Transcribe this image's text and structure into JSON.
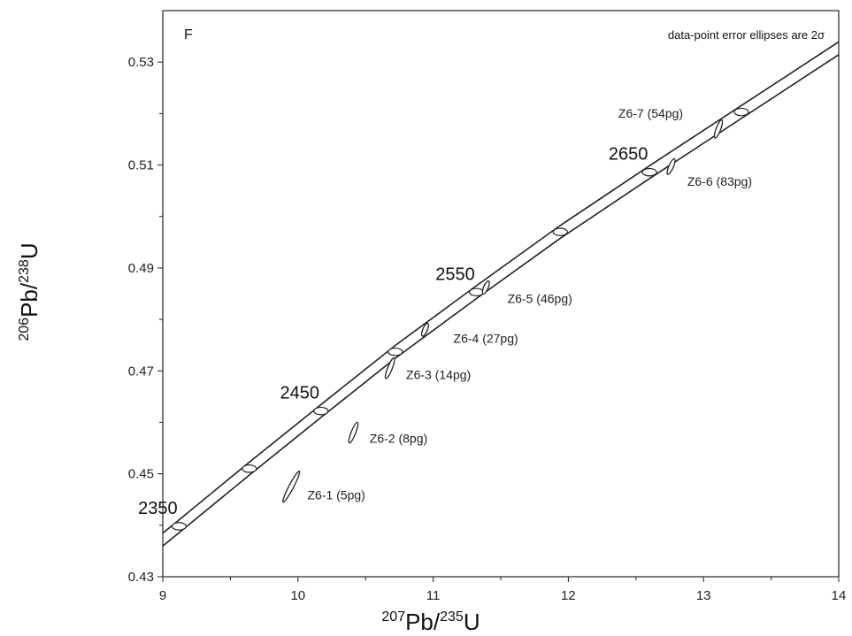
{
  "chart_data": {
    "type": "scatter",
    "panel_label": "F",
    "note": "data-point error ellipses are 2σ",
    "xlabel": {
      "sup1": "207",
      "base1": "Pb/",
      "sup2": "235",
      "base2": "U"
    },
    "ylabel": {
      "sup1": "206",
      "base1": "Pb/",
      "sup2": "238",
      "base2": "U"
    },
    "xlim": [
      9,
      14
    ],
    "ylim": [
      0.43,
      0.54
    ],
    "x_ticks": [
      "9",
      "10",
      "11",
      "12",
      "13",
      "14"
    ],
    "y_ticks": [
      "0.43",
      "0.45",
      "0.47",
      "0.49",
      "0.51",
      "0.53"
    ],
    "grid": false,
    "concordia": {
      "band_offset_y": 0.0025,
      "age_markers": [
        {
          "x": 9.12,
          "y": 0.4398
        },
        {
          "x": 9.64,
          "y": 0.451
        },
        {
          "x": 10.17,
          "y": 0.4622
        },
        {
          "x": 10.72,
          "y": 0.4737
        },
        {
          "x": 11.32,
          "y": 0.4853
        },
        {
          "x": 11.94,
          "y": 0.497
        },
        {
          "x": 12.6,
          "y": 0.5086
        },
        {
          "x": 13.28,
          "y": 0.5203
        }
      ],
      "age_labels": [
        {
          "text": "2350",
          "x": 9.12,
          "y": 0.4398
        },
        {
          "text": "2450",
          "x": 10.17,
          "y": 0.4622
        },
        {
          "text": "2550",
          "x": 11.32,
          "y": 0.4853
        },
        {
          "text": "2650",
          "x": 12.6,
          "y": 0.5086
        }
      ]
    },
    "points": [
      {
        "label": "Z6-1 (5pg)",
        "x": 9.95,
        "y": 0.4475,
        "dx": 0.12,
        "dy": 0.006
      },
      {
        "label": "Z6-2 (8pg)",
        "x": 10.41,
        "y": 0.458,
        "dx": 0.06,
        "dy": 0.004
      },
      {
        "label": "Z6-3 (14pg)",
        "x": 10.68,
        "y": 0.4705,
        "dx": 0.06,
        "dy": 0.004
      },
      {
        "label": "Z6-4 (27pg)",
        "x": 10.94,
        "y": 0.478,
        "dx": 0.04,
        "dy": 0.0025
      },
      {
        "label": "Z6-5 (46pg)",
        "x": 11.39,
        "y": 0.4862,
        "dx": 0.04,
        "dy": 0.0025
      },
      {
        "label": "Z6-6 (83pg)",
        "x": 12.76,
        "y": 0.5097,
        "dx": 0.05,
        "dy": 0.003
      },
      {
        "label": "Z6-7 (54pg)",
        "x": 13.11,
        "y": 0.517,
        "dx": 0.05,
        "dy": 0.0035
      }
    ],
    "point_label_anchor": [
      {
        "x": 10.07,
        "y": 0.445
      },
      {
        "x": 10.53,
        "y": 0.456
      },
      {
        "x": 10.8,
        "y": 0.4684
      },
      {
        "x": 11.15,
        "y": 0.4755
      },
      {
        "x": 11.55,
        "y": 0.4832
      },
      {
        "x": 12.88,
        "y": 0.506
      },
      {
        "x": 12.37,
        "y": 0.5192
      }
    ]
  }
}
